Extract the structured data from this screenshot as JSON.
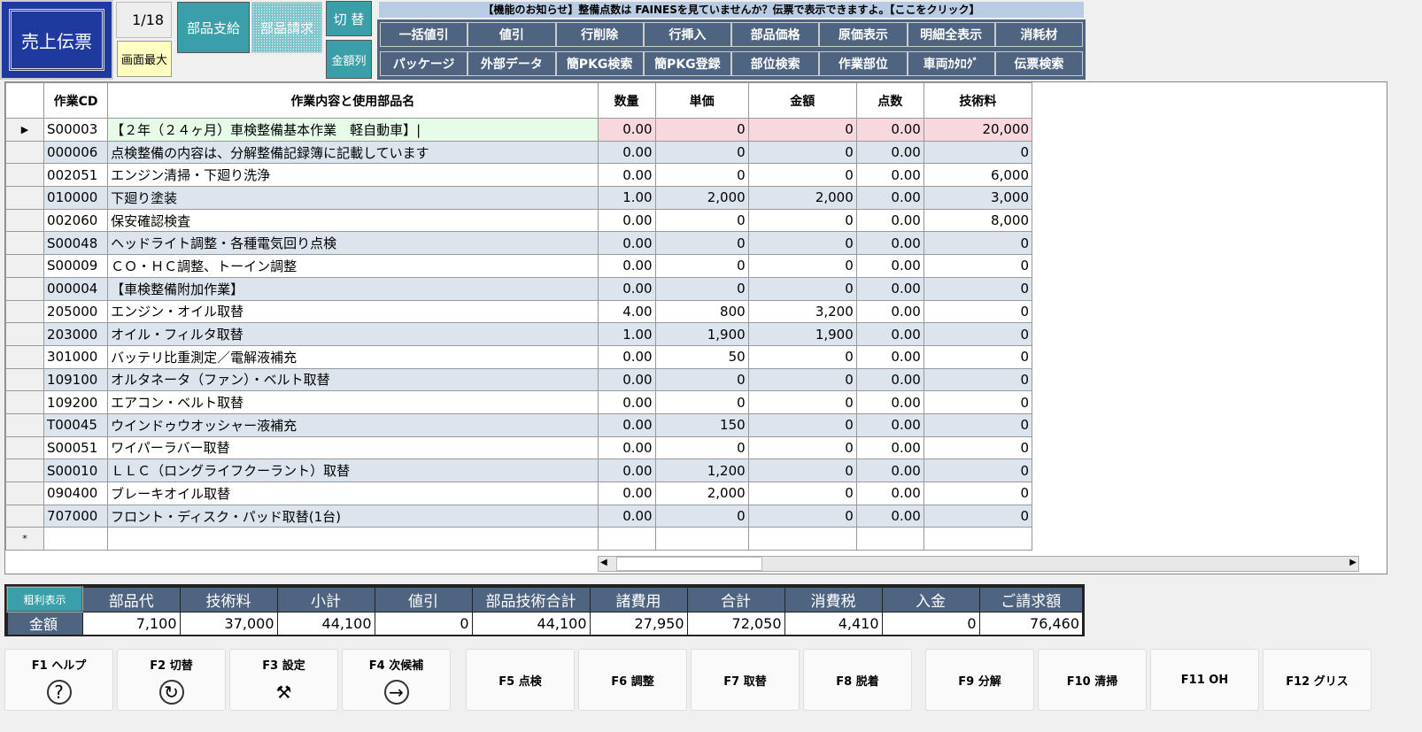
{
  "top": {
    "title": "売上伝票",
    "page": "1/18",
    "maximize": "画面最大",
    "parts_supply": "部品支給",
    "parts_request": "部品請求",
    "switch": "切 替",
    "amount_col": "金額列",
    "notice": "【機能のお知らせ】整備点数は FAINESを見ていませんか？伝票で表示できますよ。【ここをクリック】",
    "row1": [
      "一括値引",
      "値引",
      "行削除",
      "行挿入",
      "部品価格",
      "原価表示",
      "明細全表示",
      "消耗材"
    ],
    "row2": [
      "パッケージ",
      "外部データ",
      "簡PKG検索",
      "簡PKG登録",
      "部位検索",
      "作業部位",
      "車両ｶﾀﾛｸﾞ",
      "伝票検索"
    ]
  },
  "grid": {
    "headers": [
      "作業CD",
      "作業内容と使用部品名",
      "数量",
      "単価",
      "金額",
      "点数",
      "技術料"
    ],
    "rows": [
      [
        "S00003",
        "【２年（２４ヶ月）車検整備基本作業　軽自動車】|",
        "0.00",
        "0",
        "0",
        "0.00",
        "20,000"
      ],
      [
        "000006",
        "点検整備の内容は、分解整備記録簿に記載しています",
        "0.00",
        "0",
        "0",
        "0.00",
        "0"
      ],
      [
        "002051",
        "エンジン清掃・下廻り洗浄",
        "0.00",
        "0",
        "0",
        "0.00",
        "6,000"
      ],
      [
        "010000",
        "下廻り塗装",
        "1.00",
        "2,000",
        "2,000",
        "0.00",
        "3,000"
      ],
      [
        "002060",
        "保安確認検査",
        "0.00",
        "0",
        "0",
        "0.00",
        "8,000"
      ],
      [
        "S00048",
        "ヘッドライト調整・各種電気回り点検",
        "0.00",
        "0",
        "0",
        "0.00",
        "0"
      ],
      [
        "S00009",
        "ＣＯ・ＨＣ調整、トーイン調整",
        "0.00",
        "0",
        "0",
        "0.00",
        "0"
      ],
      [
        "000004",
        "【車検整備附加作業】",
        "0.00",
        "0",
        "0",
        "0.00",
        "0"
      ],
      [
        "205000",
        "エンジン・オイル取替",
        "4.00",
        "800",
        "3,200",
        "0.00",
        "0"
      ],
      [
        "203000",
        "オイル・フィルタ取替",
        "1.00",
        "1,900",
        "1,900",
        "0.00",
        "0"
      ],
      [
        "301000",
        "バッテリ比重測定／電解液補充",
        "0.00",
        "50",
        "0",
        "0.00",
        "0"
      ],
      [
        "109100",
        "オルタネータ（ファン）・ベルト取替",
        "0.00",
        "0",
        "0",
        "0.00",
        "0"
      ],
      [
        "109200",
        "エアコン・ベルト取替",
        "0.00",
        "0",
        "0",
        "0.00",
        "0"
      ],
      [
        "T00045",
        "ウインドゥウオッシャー液補充",
        "0.00",
        "150",
        "0",
        "0.00",
        "0"
      ],
      [
        "S00051",
        "ワイパーラバー取替",
        "0.00",
        "0",
        "0",
        "0.00",
        "0"
      ],
      [
        "S00010",
        "ＬＬＣ（ロングライフクーラント）取替",
        "0.00",
        "1,200",
        "0",
        "0.00",
        "0"
      ],
      [
        "090400",
        "ブレーキオイル取替",
        "0.00",
        "2,000",
        "0",
        "0.00",
        "0"
      ],
      [
        "707000",
        "フロント・ディスク・パッド取替(1台)",
        "0.00",
        "0",
        "0",
        "0.00",
        "0"
      ]
    ],
    "current_marker": "▶",
    "new_marker": "*"
  },
  "summary": {
    "toggle": "粗利表示",
    "row_label": "金額",
    "headers": [
      "部品代",
      "技術料",
      "小計",
      "値引",
      "部品技術合計",
      "諸費用",
      "合計",
      "消費税",
      "入金",
      "ご請求額"
    ],
    "values": [
      "7,100",
      "37,000",
      "44,100",
      "0",
      "44,100",
      "27,950",
      "72,050",
      "4,410",
      "0",
      "76,460"
    ]
  },
  "fkeys": [
    {
      "label": "F1 ヘルプ",
      "icon": "question-icon",
      "glyph": "?"
    },
    {
      "label": "F2 切替",
      "icon": "refresh-icon",
      "glyph": "↻"
    },
    {
      "label": "F3 設定",
      "icon": "tools-icon",
      "glyph": "⚒"
    },
    {
      "label": "F4 次候補",
      "icon": "arrow-right-icon",
      "glyph": "→"
    },
    {
      "label": "F5 点検"
    },
    {
      "label": "F6 調整"
    },
    {
      "label": "F7 取替"
    },
    {
      "label": "F8 脱着"
    },
    {
      "label": "F9 分解"
    },
    {
      "label": "F10 清掃"
    },
    {
      "label": "F11 OH"
    },
    {
      "label": "F12 グリス"
    }
  ],
  "colors": {
    "header_blue": "#4f6480",
    "teal": "#3a9fa9",
    "title_blue": "#1f3a9e",
    "row_alt": "#dce4ee"
  }
}
